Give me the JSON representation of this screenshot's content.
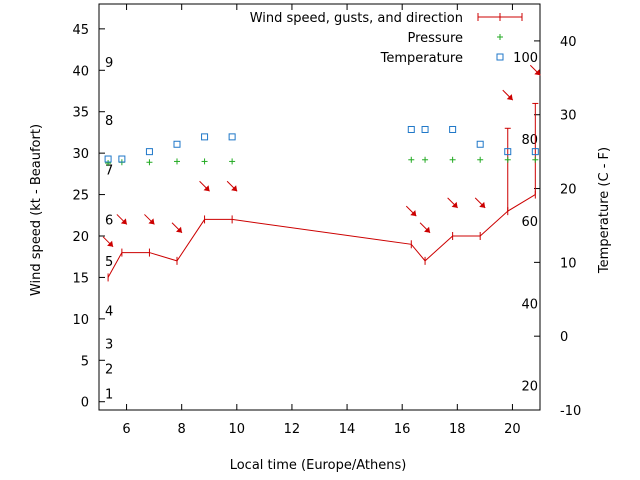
{
  "colors": {
    "wind": "#cc0000",
    "pressure": "#22aa22",
    "temperature": "#1f77c8",
    "axis": "#000000",
    "background": "#ffffff"
  },
  "chart_data": {
    "type": "line",
    "xlabel": "Local time (Europe/Athens)",
    "ylabel": "Wind speed (kt - Beaufort)",
    "y2label": "Temperature (C - F)",
    "xlim": [
      5,
      21
    ],
    "ylim": [
      -1,
      48
    ],
    "y2lim": [
      -10,
      45
    ],
    "xticks": [
      6,
      8,
      10,
      12,
      14,
      16,
      18,
      20
    ],
    "yticks": [
      0,
      5,
      10,
      15,
      20,
      25,
      30,
      35,
      40,
      45
    ],
    "y2ticks": [
      -10,
      0,
      10,
      20,
      30,
      40
    ],
    "grid": false,
    "legend_position": "top-right",
    "legend": [
      "Wind speed, gusts, and direction",
      "Pressure",
      "Temperature"
    ],
    "beaufort_labels": [
      {
        "text": "1",
        "y": 1
      },
      {
        "text": "2",
        "y": 4
      },
      {
        "text": "3",
        "y": 7
      },
      {
        "text": "4",
        "y": 11
      },
      {
        "text": "5",
        "y": 17
      },
      {
        "text": "6",
        "y": 22
      },
      {
        "text": "7",
        "y": 28
      },
      {
        "text": "8",
        "y": 34
      },
      {
        "text": "9",
        "y": 41
      }
    ],
    "fahrenheit_labels": [
      {
        "text": "20",
        "y2": -6.7
      },
      {
        "text": "40",
        "y2": 4.4
      },
      {
        "text": "60",
        "y2": 15.6
      },
      {
        "text": "80",
        "y2": 26.7
      },
      {
        "text": "100",
        "y2": 37.8
      }
    ],
    "series": [
      {
        "name": "Wind speed, gusts, and direction",
        "axis": "y",
        "x": [
          5.33,
          5.83,
          6.83,
          7.83,
          8.83,
          9.83,
          16.33,
          16.83,
          17.83,
          18.83,
          19.83,
          20.83
        ],
        "values": [
          15,
          18,
          18,
          17,
          22,
          22,
          19,
          17,
          20,
          20,
          23,
          25
        ],
        "gusts": [
          null,
          null,
          null,
          null,
          null,
          null,
          null,
          null,
          null,
          null,
          33,
          36
        ],
        "direction_arrow_y": [
          19.3,
          22.0,
          22.0,
          21.0,
          26.0,
          26.0,
          23.0,
          21.0,
          24.0,
          24.0,
          37.0,
          40.0
        ]
      },
      {
        "name": "Pressure",
        "axis": "y",
        "x": [
          5.33,
          5.83,
          6.83,
          7.83,
          8.83,
          9.83,
          16.33,
          16.83,
          17.83,
          18.83,
          19.83,
          20.83
        ],
        "values": [
          28.8,
          28.9,
          28.9,
          29.0,
          29.0,
          29.0,
          29.2,
          29.2,
          29.2,
          29.2,
          29.2,
          29.2
        ]
      },
      {
        "name": "Temperature",
        "axis": "y2",
        "x": [
          5.33,
          5.83,
          6.83,
          7.83,
          8.83,
          9.83,
          16.33,
          16.83,
          17.83,
          18.83,
          19.83,
          20.83
        ],
        "values": [
          24,
          24,
          25,
          26,
          27,
          27,
          28,
          28,
          28,
          26,
          25,
          25
        ]
      }
    ]
  }
}
